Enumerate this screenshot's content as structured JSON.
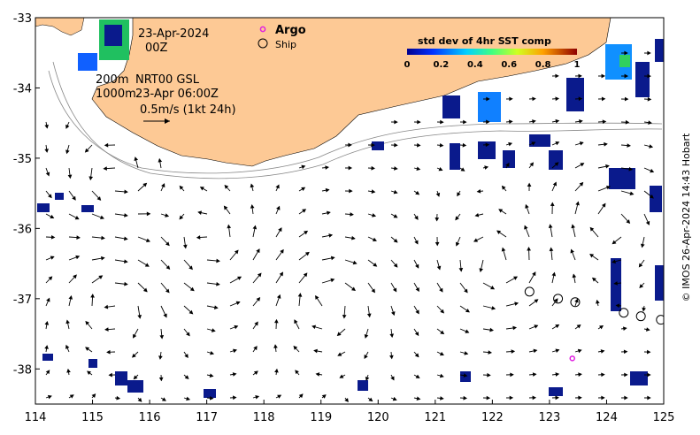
{
  "map": {
    "date": "23-Apr-2024",
    "hour": "00Z",
    "depth_label": "200m",
    "depth_label2": "1000m",
    "product": "NRT00 GSL",
    "product_time": "23-Apr 06:00Z",
    "scale_label": "0.5m/s (1kt 24h)",
    "legend": {
      "argo": "Argo",
      "ship": "Ship"
    },
    "colorbar": {
      "title": "std dev of 4hr SST comp",
      "ticks": [
        "0",
        "0.2",
        "0.4",
        "0.6",
        "0.8",
        "1"
      ]
    },
    "x_ticks": [
      "114",
      "115",
      "116",
      "117",
      "118",
      "119",
      "120",
      "121",
      "122",
      "123",
      "124",
      "125"
    ],
    "y_ticks": [
      "-33",
      "-34",
      "-35",
      "-36",
      "-37",
      "-38"
    ],
    "credit": "© IMOS 26-Apr-2024 14:43 Hobart",
    "colors": {
      "land": "#fdc995",
      "argo": "#e020e0",
      "sst_low": "#0a1a8c",
      "arrow": "#000000"
    },
    "ship_positions": [
      [
        122.65,
        -36.9
      ],
      [
        123.15,
        -37.0
      ],
      [
        123.45,
        -37.05
      ],
      [
        124.3,
        -37.2
      ],
      [
        124.6,
        -37.25
      ],
      [
        124.95,
        -37.3
      ]
    ],
    "argo_positions": [
      [
        123.4,
        -37.85
      ]
    ]
  }
}
